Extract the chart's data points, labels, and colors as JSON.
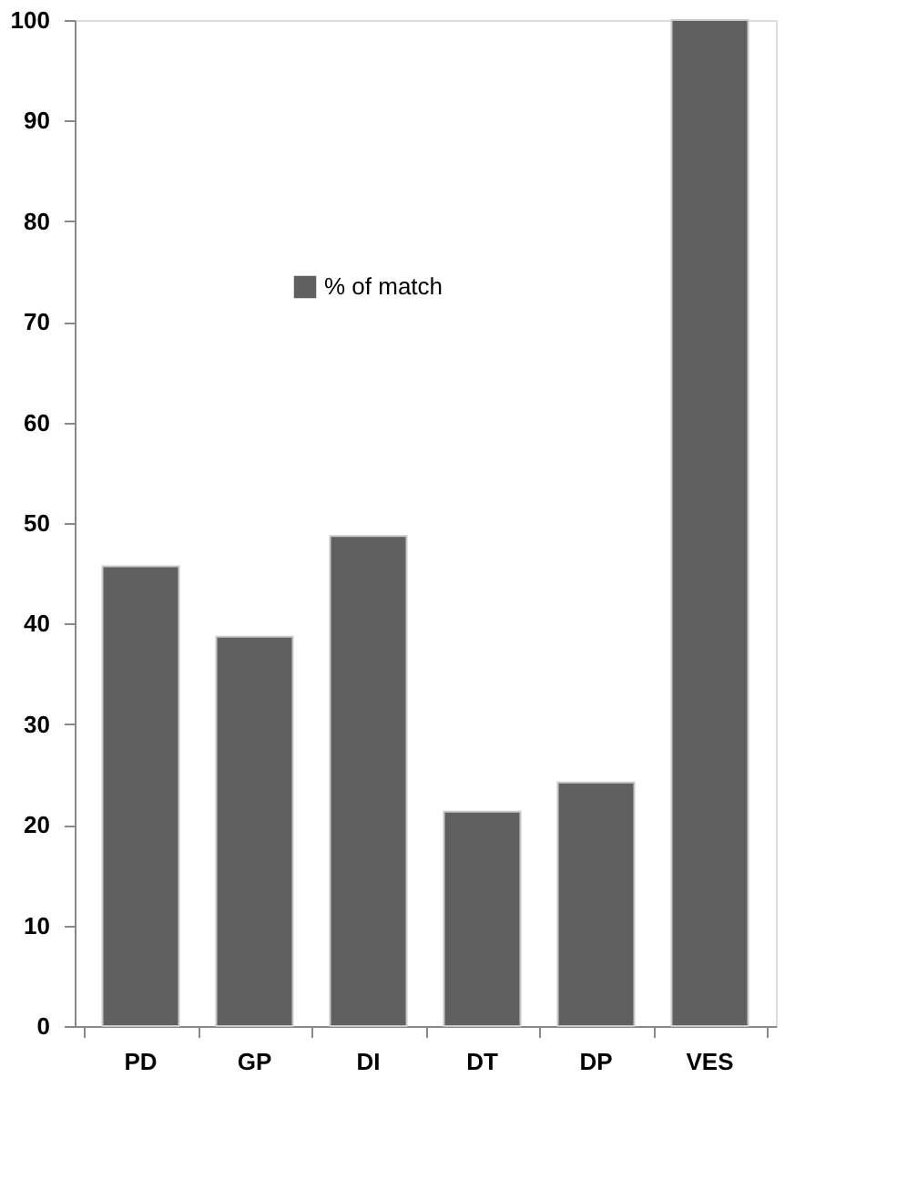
{
  "chart_data": {
    "type": "bar",
    "categories": [
      "PD",
      "GP",
      "DI",
      "DT",
      "DP",
      "VES"
    ],
    "series": [
      {
        "name": "% of match",
        "color": "#606060",
        "values": [
          45.7,
          38.7,
          48.7,
          21.3,
          24.2,
          100
        ]
      }
    ],
    "ylim": [
      0,
      100
    ],
    "yticks": [
      0,
      10,
      20,
      30,
      40,
      50,
      60,
      70,
      80,
      90,
      100
    ],
    "grid": false,
    "legend": "top left"
  }
}
